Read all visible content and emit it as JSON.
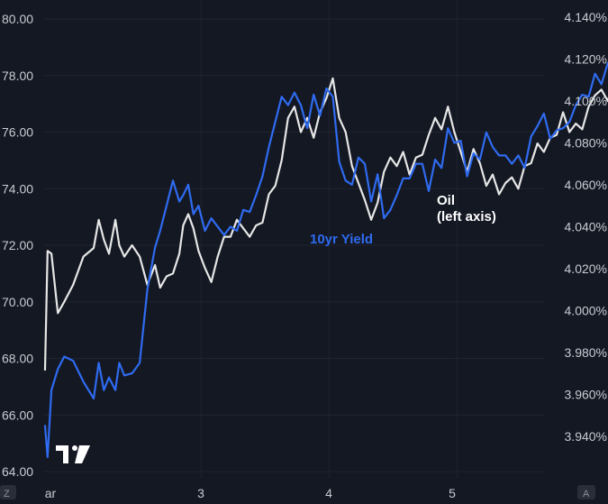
{
  "colors": {
    "background": "#141823",
    "grid": "#1f2430",
    "axis_text": "#c8cbd2",
    "oil": "#e6e6e6",
    "yield": "#2f6bf0",
    "axis_badge": "#2a2e39"
  },
  "corner_labels": {
    "bottom_left": "Z",
    "bottom_right": "A"
  },
  "logo": {
    "name": "tradingview-logo-icon",
    "text": "TV"
  },
  "chart_data": {
    "type": "line",
    "x_ticks": [
      "ar",
      "3",
      "4",
      "5"
    ],
    "left_axis": {
      "ticks": [
        "80.00",
        "78.00",
        "76.00",
        "74.00",
        "72.00",
        "70.00",
        "68.00",
        "66.00",
        "64.00"
      ],
      "ylim": [
        64,
        80
      ]
    },
    "right_axis": {
      "ticks": [
        "4.140%",
        "4.120%",
        "4.100%",
        "4.080%",
        "4.060%",
        "4.040%",
        "4.020%",
        "4.000%",
        "3.980%",
        "3.960%",
        "3.940%"
      ],
      "ylim": [
        3.927,
        4.14
      ]
    },
    "series": [
      {
        "name": "Oil (left axis)",
        "label_lines": [
          "Oil",
          "(left axis)"
        ],
        "axis": "left",
        "x": [
          0.0,
          0.02,
          0.05,
          0.1,
          0.15,
          0.22,
          0.3,
          0.38,
          0.42,
          0.46,
          0.5,
          0.55,
          0.58,
          0.62,
          0.68,
          0.74,
          0.8,
          0.86,
          0.9,
          0.95,
          1.0,
          1.05,
          1.08,
          1.12,
          1.16,
          1.2,
          1.25,
          1.3,
          1.35,
          1.4,
          1.45,
          1.5,
          1.55,
          1.6,
          1.65,
          1.7,
          1.75,
          1.8,
          1.85,
          1.9,
          1.95,
          2.0,
          2.05,
          2.1,
          2.15,
          2.2,
          2.25,
          2.3,
          2.35,
          2.4,
          2.45,
          2.5,
          2.55,
          2.6,
          2.65,
          2.7,
          2.75,
          2.8,
          2.85,
          2.9,
          2.95,
          3.0,
          3.05,
          3.1,
          3.15,
          3.2,
          3.25,
          3.3,
          3.35,
          3.4,
          3.45,
          3.5,
          3.55,
          3.6,
          3.65,
          3.7,
          3.75,
          3.8,
          3.85,
          3.9,
          3.95,
          4.0,
          4.05,
          4.1,
          4.15,
          4.2,
          4.25,
          4.3,
          4.35,
          4.4,
          4.45,
          4.5,
          4.55,
          4.6,
          4.65,
          4.7,
          4.75,
          4.8,
          4.85,
          4.9,
          4.95,
          5.0,
          5.05,
          5.1,
          5.15,
          5.2,
          5.25,
          5.3,
          5.35,
          5.4
        ],
        "values": [
          67.6,
          71.8,
          71.7,
          69.6,
          70.0,
          70.6,
          71.6,
          71.9,
          72.9,
          72.2,
          71.7,
          72.9,
          72.0,
          71.6,
          72.0,
          71.6,
          70.6,
          71.3,
          70.5,
          70.9,
          71.0,
          71.7,
          72.7,
          73.1,
          72.6,
          71.8,
          71.2,
          70.7,
          71.6,
          72.3,
          72.3,
          72.9,
          72.6,
          72.3,
          72.7,
          72.8,
          73.8,
          74.1,
          75.0,
          76.5,
          76.9,
          76.0,
          76.5,
          75.8,
          76.7,
          77.2,
          77.9,
          76.5,
          76.0,
          74.8,
          74.2,
          73.6,
          72.9,
          73.5,
          74.6,
          75.1,
          74.8,
          75.3,
          74.5,
          75.1,
          75.2,
          75.9,
          76.5,
          76.1,
          76.9,
          76.0,
          75.3,
          74.6,
          75.4,
          74.9,
          74.1,
          74.5,
          73.8,
          74.2,
          74.4,
          74.0,
          74.8,
          74.9,
          75.6,
          75.3,
          75.8,
          75.9,
          76.7,
          76.0,
          76.3,
          76.1,
          76.9,
          77.3,
          77.5,
          77.1,
          77.8,
          77.3,
          77.5,
          77.7,
          77.0,
          77.2,
          76.8,
          77.4,
          76.0,
          76.2,
          76.8,
          77.0,
          76.4,
          76.1,
          75.9,
          76.4,
          76.7,
          76.9,
          77.1,
          77.8
        ]
      },
      {
        "name": "10yr Yield",
        "label_lines": [
          "10yr Yield"
        ],
        "axis": "right",
        "x": [
          0.0,
          0.02,
          0.05,
          0.1,
          0.15,
          0.22,
          0.3,
          0.38,
          0.42,
          0.46,
          0.5,
          0.55,
          0.58,
          0.62,
          0.68,
          0.74,
          0.8,
          0.86,
          0.9,
          0.95,
          1.0,
          1.05,
          1.08,
          1.12,
          1.16,
          1.2,
          1.25,
          1.3,
          1.35,
          1.4,
          1.45,
          1.5,
          1.55,
          1.6,
          1.65,
          1.7,
          1.75,
          1.8,
          1.85,
          1.9,
          1.95,
          2.0,
          2.05,
          2.1,
          2.15,
          2.2,
          2.25,
          2.3,
          2.35,
          2.4,
          2.45,
          2.5,
          2.55,
          2.6,
          2.65,
          2.7,
          2.75,
          2.8,
          2.85,
          2.9,
          2.95,
          3.0,
          3.05,
          3.1,
          3.15,
          3.2,
          3.25,
          3.3,
          3.35,
          3.4,
          3.45,
          3.5,
          3.55,
          3.6,
          3.65,
          3.7,
          3.75,
          3.8,
          3.85,
          3.9,
          3.95,
          4.0,
          4.05,
          4.1,
          4.15,
          4.2,
          4.25,
          4.3,
          4.35,
          4.4,
          4.45,
          4.5,
          4.55,
          4.6,
          4.65,
          4.7,
          4.75,
          4.8,
          4.85,
          4.9,
          4.95,
          5.0,
          5.05,
          5.1,
          5.15,
          5.2,
          5.25,
          5.3,
          5.35,
          5.4
        ],
        "values": [
          3.945,
          3.93,
          3.962,
          3.972,
          3.978,
          3.976,
          3.966,
          3.958,
          3.975,
          3.962,
          3.968,
          3.962,
          3.975,
          3.969,
          3.97,
          3.975,
          4.01,
          4.03,
          4.038,
          4.05,
          4.062,
          4.052,
          4.055,
          4.06,
          4.046,
          4.05,
          4.038,
          4.044,
          4.04,
          4.036,
          4.04,
          4.038,
          4.048,
          4.047,
          4.055,
          4.064,
          4.078,
          4.09,
          4.102,
          4.098,
          4.104,
          4.098,
          4.087,
          4.103,
          4.093,
          4.106,
          4.102,
          4.071,
          4.062,
          4.06,
          4.073,
          4.07,
          4.052,
          4.065,
          4.044,
          4.048,
          4.055,
          4.063,
          4.063,
          4.07,
          4.07,
          4.057,
          4.072,
          4.068,
          4.087,
          4.08,
          4.081,
          4.064,
          4.075,
          4.072,
          4.085,
          4.078,
          4.074,
          4.074,
          4.07,
          4.074,
          4.068,
          4.083,
          4.088,
          4.094,
          4.082,
          4.086,
          4.087,
          4.09,
          4.098,
          4.103,
          4.102,
          4.113,
          4.108,
          4.118,
          4.12,
          4.127,
          4.118,
          4.121,
          4.118,
          4.124,
          4.122,
          4.113,
          4.118,
          4.121,
          4.116,
          4.126,
          4.127,
          4.115,
          4.12,
          4.125,
          4.131,
          4.137,
          4.14,
          4.141
        ]
      }
    ]
  }
}
